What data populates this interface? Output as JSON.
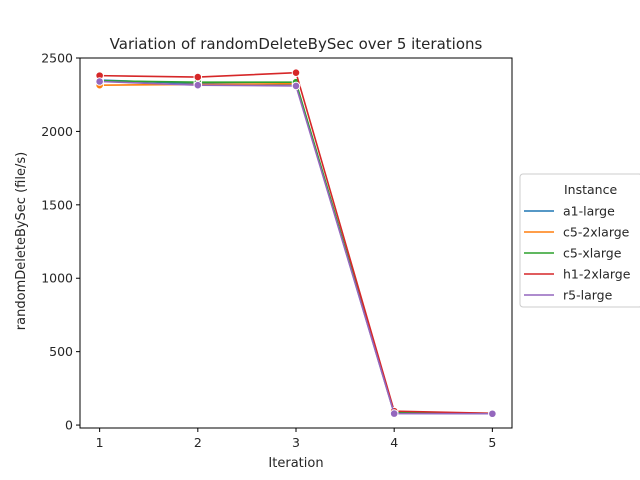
{
  "chart_data": {
    "type": "line",
    "title": "Variation of randomDeleteBySec over 5 iterations",
    "xlabel": "Iteration",
    "ylabel": "randomDeleteBySec (file/s)",
    "x": [
      1,
      2,
      3,
      4,
      5
    ],
    "xticks": [
      "1",
      "2",
      "3",
      "4",
      "5"
    ],
    "xlim": [
      0.8,
      5.2
    ],
    "ylim": [
      -20,
      2500
    ],
    "yticks": [
      0,
      500,
      1000,
      1500,
      2000,
      2500
    ],
    "grid": false,
    "legend": {
      "title": "Instance",
      "placement": "outside-right"
    },
    "series": [
      {
        "name": "a1-large",
        "color": "#1f77b4",
        "values": [
          2350,
          2325,
          2320,
          80,
          78
        ]
      },
      {
        "name": "c5-2xlarge",
        "color": "#ff7f0e",
        "values": [
          2315,
          2320,
          2325,
          82,
          79
        ]
      },
      {
        "name": "c5-xlarge",
        "color": "#2ca02c",
        "values": [
          2345,
          2335,
          2335,
          85,
          80
        ]
      },
      {
        "name": "h1-2xlarge",
        "color": "#d62728",
        "values": [
          2380,
          2370,
          2400,
          95,
          80
        ]
      },
      {
        "name": "r5-large",
        "color": "#9467bd",
        "values": [
          2340,
          2315,
          2310,
          78,
          77
        ]
      }
    ]
  }
}
